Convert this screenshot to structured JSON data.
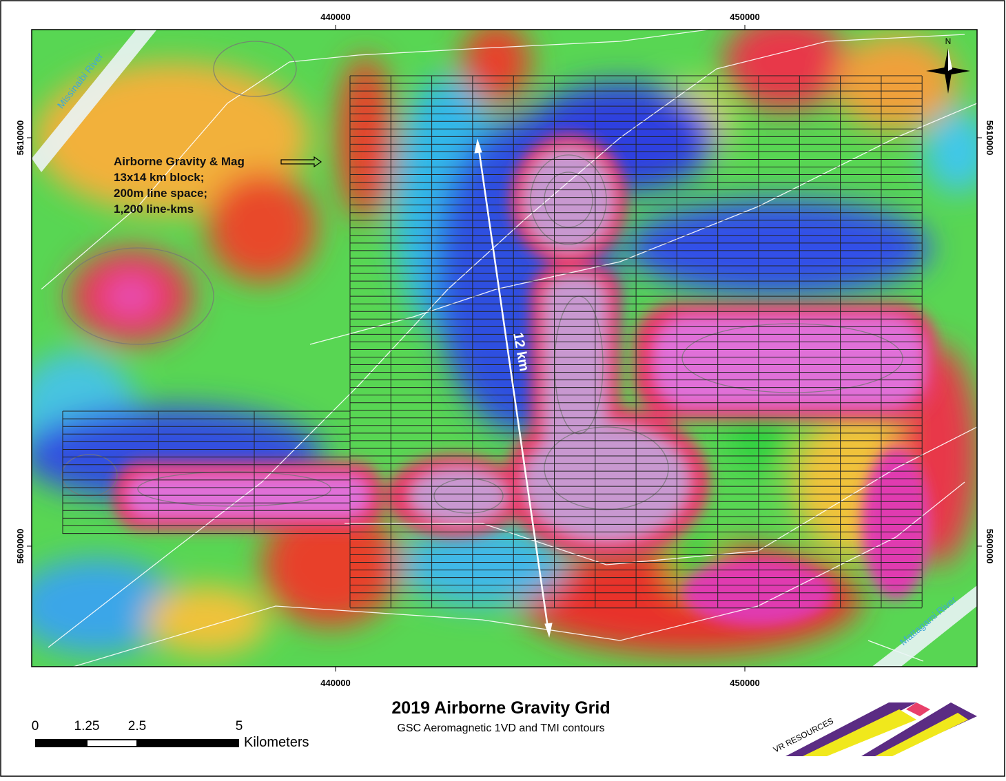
{
  "map": {
    "title": "2019 Airborne Gravity Grid",
    "subtitle": "GSC Aeromagnetic 1VD and TMI contours",
    "easting_top": [
      "440000",
      "450000"
    ],
    "easting_bottom": [
      "440000",
      "450000"
    ],
    "northing_left": [
      "5610000",
      "5600000"
    ],
    "northing_right": [
      "5610000",
      "5600000"
    ],
    "north_label": "N",
    "rivers": [
      "Missinaibi River",
      "Mattagami River"
    ],
    "annotation": [
      "Airborne Gravity & Mag",
      "13x14 km block;",
      "200m line space;",
      "1,200 line-kms"
    ],
    "distance_label": "12 km",
    "scale_bar": {
      "labels": [
        "0",
        "1.25",
        "2.5",
        "5"
      ],
      "unit": "Kilometers"
    },
    "logo": "VR RESOURCES"
  }
}
